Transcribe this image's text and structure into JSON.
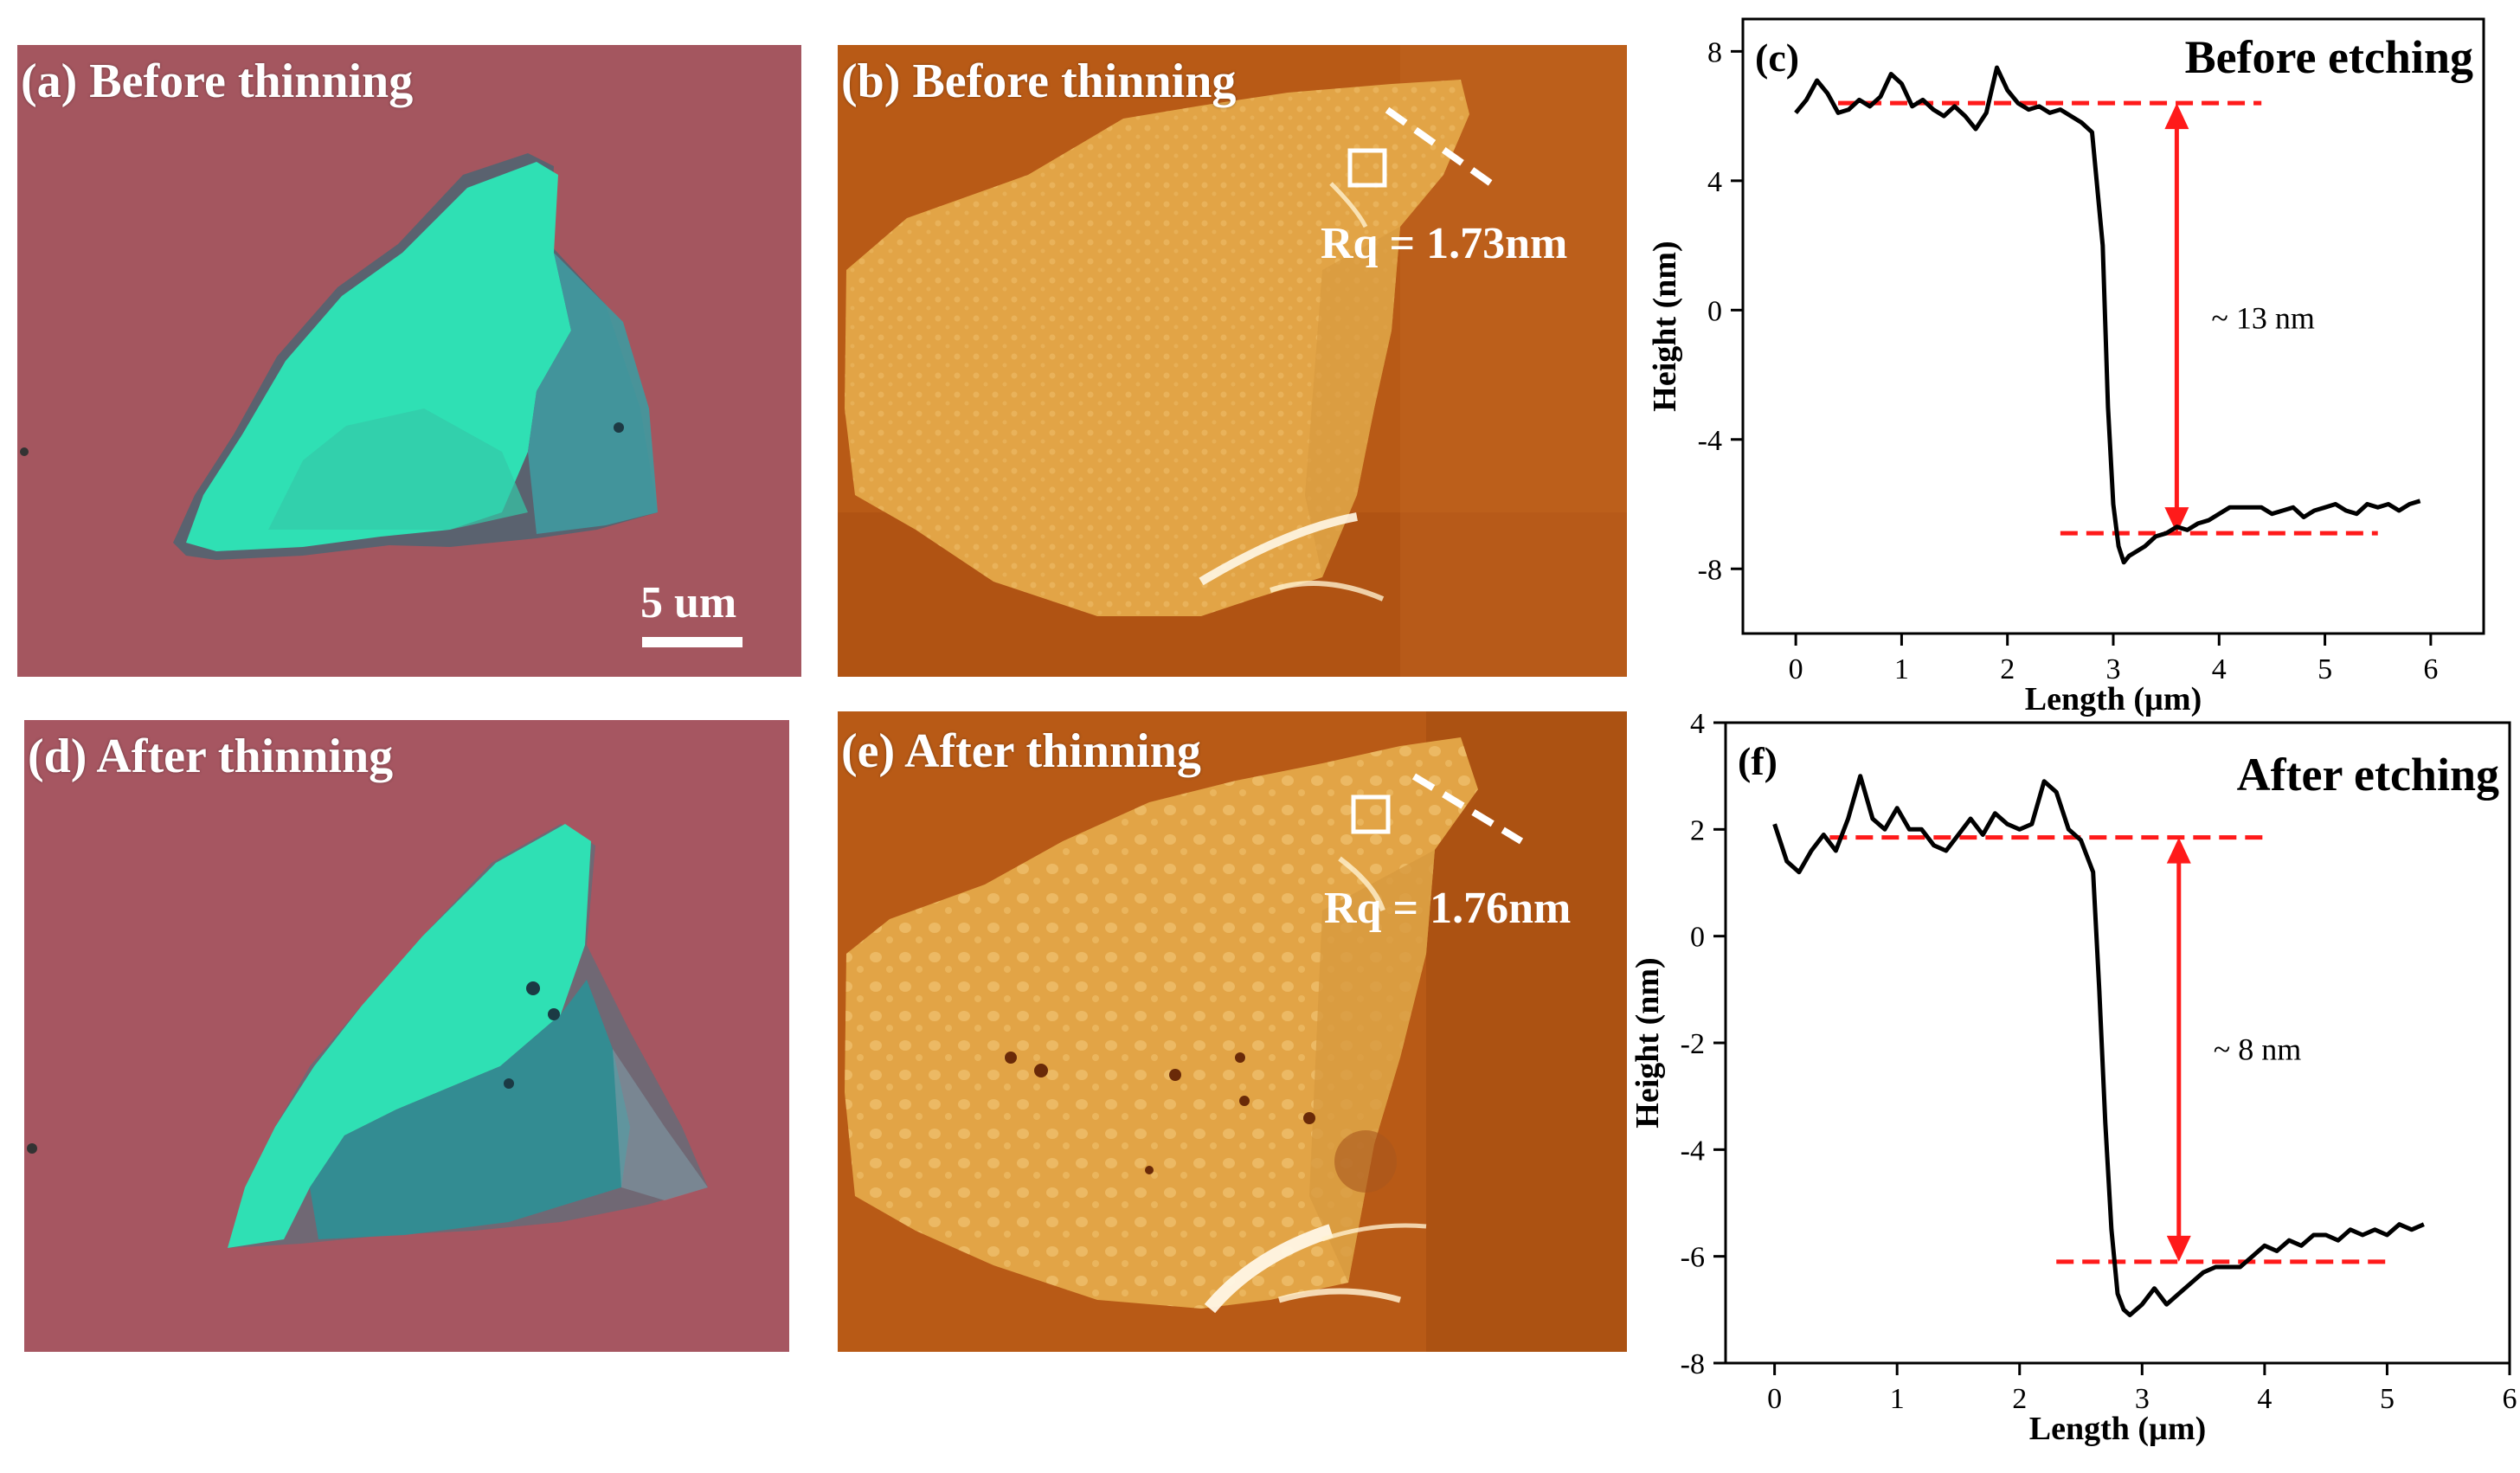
{
  "panels": {
    "a": {
      "label": "(a) Before thinning",
      "scale_text": "5 um"
    },
    "b": {
      "label": "(b) Before thinning",
      "rq": "Rq = 1.73nm"
    },
    "d": {
      "label": "(d) After thinning"
    },
    "e": {
      "label": "(e) After thinning",
      "rq": "Rq = 1.76nm"
    }
  },
  "colors": {
    "substrate": "#a4565f",
    "flake": "#2fe0b4",
    "afm_bg": "#b85a16",
    "afm_flake": "#e2a446",
    "marker": "#ff1a1a"
  },
  "chart_data": [
    {
      "type": "line",
      "panel_label": "(c)",
      "title": "Before etching",
      "xlabel": "Length (µm)",
      "ylabel": "Height (nm)",
      "xlim": [
        -0.5,
        6.5
      ],
      "ylim": [
        -10,
        9
      ],
      "xticks": [
        0,
        1,
        2,
        3,
        4,
        5,
        6
      ],
      "yticks": [
        -8,
        -4,
        0,
        4,
        8
      ],
      "annotation": "~ 13 nm",
      "upper_level": {
        "y": 6.4,
        "x_range": [
          0.4,
          4.4
        ]
      },
      "lower_level": {
        "y": -6.9,
        "x_range": [
          2.5,
          5.5
        ]
      },
      "arrow_x": 3.6,
      "x": [
        0,
        0.1,
        0.2,
        0.3,
        0.4,
        0.5,
        0.6,
        0.7,
        0.8,
        0.9,
        1.0,
        1.1,
        1.2,
        1.3,
        1.4,
        1.5,
        1.6,
        1.7,
        1.8,
        1.9,
        2.0,
        2.1,
        2.2,
        2.3,
        2.4,
        2.5,
        2.6,
        2.7,
        2.8,
        2.9,
        2.95,
        3.0,
        3.05,
        3.1,
        3.15,
        3.2,
        3.3,
        3.4,
        3.5,
        3.6,
        3.7,
        3.8,
        3.9,
        4.0,
        4.1,
        4.2,
        4.3,
        4.4,
        4.5,
        4.6,
        4.7,
        4.8,
        4.9,
        5.0,
        5.1,
        5.2,
        5.3,
        5.4,
        5.5,
        5.6,
        5.7,
        5.8,
        5.9
      ],
      "y": [
        6.1,
        6.5,
        7.1,
        6.7,
        6.1,
        6.2,
        6.5,
        6.3,
        6.6,
        7.3,
        7.0,
        6.3,
        6.5,
        6.2,
        6.0,
        6.3,
        6.0,
        5.6,
        6.1,
        7.5,
        6.8,
        6.4,
        6.2,
        6.3,
        6.1,
        6.2,
        6.0,
        5.8,
        5.5,
        2.0,
        -3.0,
        -6.0,
        -7.3,
        -7.8,
        -7.6,
        -7.5,
        -7.3,
        -7.0,
        -6.9,
        -6.7,
        -6.8,
        -6.6,
        -6.5,
        -6.3,
        -6.1,
        -6.1,
        -6.1,
        -6.1,
        -6.3,
        -6.2,
        -6.1,
        -6.4,
        -6.2,
        -6.1,
        -6.0,
        -6.2,
        -6.3,
        -6.0,
        -6.1,
        -6.0,
        -6.2,
        -6.0,
        -5.9
      ]
    },
    {
      "type": "line",
      "panel_label": "(f)",
      "title": "After etching",
      "xlabel": "Length (µm)",
      "ylabel": "Height (nm)",
      "xlim": [
        -0.4,
        6
      ],
      "ylim": [
        -8,
        4
      ],
      "xticks": [
        0,
        1,
        2,
        3,
        4,
        5,
        6
      ],
      "yticks": [
        -8,
        -6,
        -4,
        -2,
        0,
        2,
        4
      ],
      "annotation": "~ 8 nm",
      "upper_level": {
        "y": 1.85,
        "x_range": [
          0.45,
          4.05
        ]
      },
      "lower_level": {
        "y": -6.1,
        "x_range": [
          2.3,
          5.05
        ]
      },
      "arrow_x": 3.3,
      "x": [
        0,
        0.1,
        0.2,
        0.3,
        0.4,
        0.5,
        0.6,
        0.7,
        0.8,
        0.9,
        1.0,
        1.1,
        1.2,
        1.3,
        1.4,
        1.5,
        1.6,
        1.7,
        1.8,
        1.9,
        2.0,
        2.1,
        2.2,
        2.3,
        2.4,
        2.5,
        2.6,
        2.65,
        2.7,
        2.75,
        2.8,
        2.85,
        2.9,
        3.0,
        3.1,
        3.2,
        3.3,
        3.4,
        3.5,
        3.6,
        3.7,
        3.8,
        3.9,
        4.0,
        4.1,
        4.2,
        4.3,
        4.4,
        4.5,
        4.6,
        4.7,
        4.8,
        4.9,
        5.0,
        5.1,
        5.2,
        5.3
      ],
      "y": [
        2.1,
        1.4,
        1.2,
        1.6,
        1.9,
        1.6,
        2.2,
        3.0,
        2.2,
        2.0,
        2.4,
        2.0,
        2.0,
        1.7,
        1.6,
        1.9,
        2.2,
        1.9,
        2.3,
        2.1,
        2.0,
        2.1,
        2.9,
        2.7,
        2.0,
        1.8,
        1.2,
        -1.0,
        -3.5,
        -5.5,
        -6.7,
        -7.0,
        -7.1,
        -6.9,
        -6.6,
        -6.9,
        -6.7,
        -6.5,
        -6.3,
        -6.2,
        -6.2,
        -6.2,
        -6.0,
        -5.8,
        -5.9,
        -5.7,
        -5.8,
        -5.6,
        -5.6,
        -5.7,
        -5.5,
        -5.6,
        -5.5,
        -5.6,
        -5.4,
        -5.5,
        -5.4
      ]
    }
  ]
}
